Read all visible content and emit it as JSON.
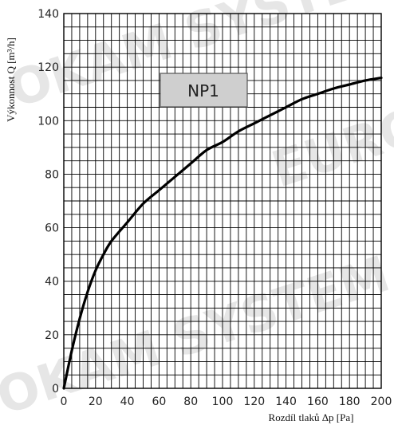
{
  "chart_data": {
    "type": "line",
    "title": "",
    "xlabel": "Rozdíl tlaků  Δp [Pa]",
    "ylabel": "Výkonnost Q [m³/h]",
    "xlim": [
      0,
      200
    ],
    "ylim": [
      0,
      140
    ],
    "x_ticks": [
      0,
      20,
      40,
      60,
      80,
      100,
      120,
      140,
      160,
      180,
      200
    ],
    "y_ticks": [
      0,
      20,
      40,
      60,
      80,
      100,
      120,
      140
    ],
    "x_tick_labels": [
      "0",
      "20",
      "40",
      "60",
      "80",
      "100",
      "120",
      "140",
      "160",
      "180",
      "200"
    ],
    "y_tick_labels": [
      "0",
      "20",
      "40",
      "60",
      "80",
      "100",
      "120",
      "140"
    ],
    "grid": true,
    "minor_x_step": 5,
    "minor_y_step": 5,
    "series": [
      {
        "name": "NP1",
        "color": "#000000",
        "x": [
          0,
          5,
          10,
          15,
          20,
          25,
          30,
          40,
          50,
          60,
          70,
          80,
          90,
          100,
          110,
          120,
          130,
          140,
          150,
          160,
          170,
          180,
          190,
          200
        ],
        "y": [
          0,
          14,
          26,
          36,
          44,
          50,
          55,
          62,
          69,
          74,
          79,
          84,
          89,
          92,
          96,
          99,
          102,
          105,
          108,
          110,
          112,
          113.5,
          115,
          116
        ]
      }
    ],
    "annotations": [
      {
        "text": "NP1"
      }
    ],
    "watermark": [
      "OKAM SYSTE",
      "EURO",
      "OKAM SYSTEM"
    ]
  }
}
